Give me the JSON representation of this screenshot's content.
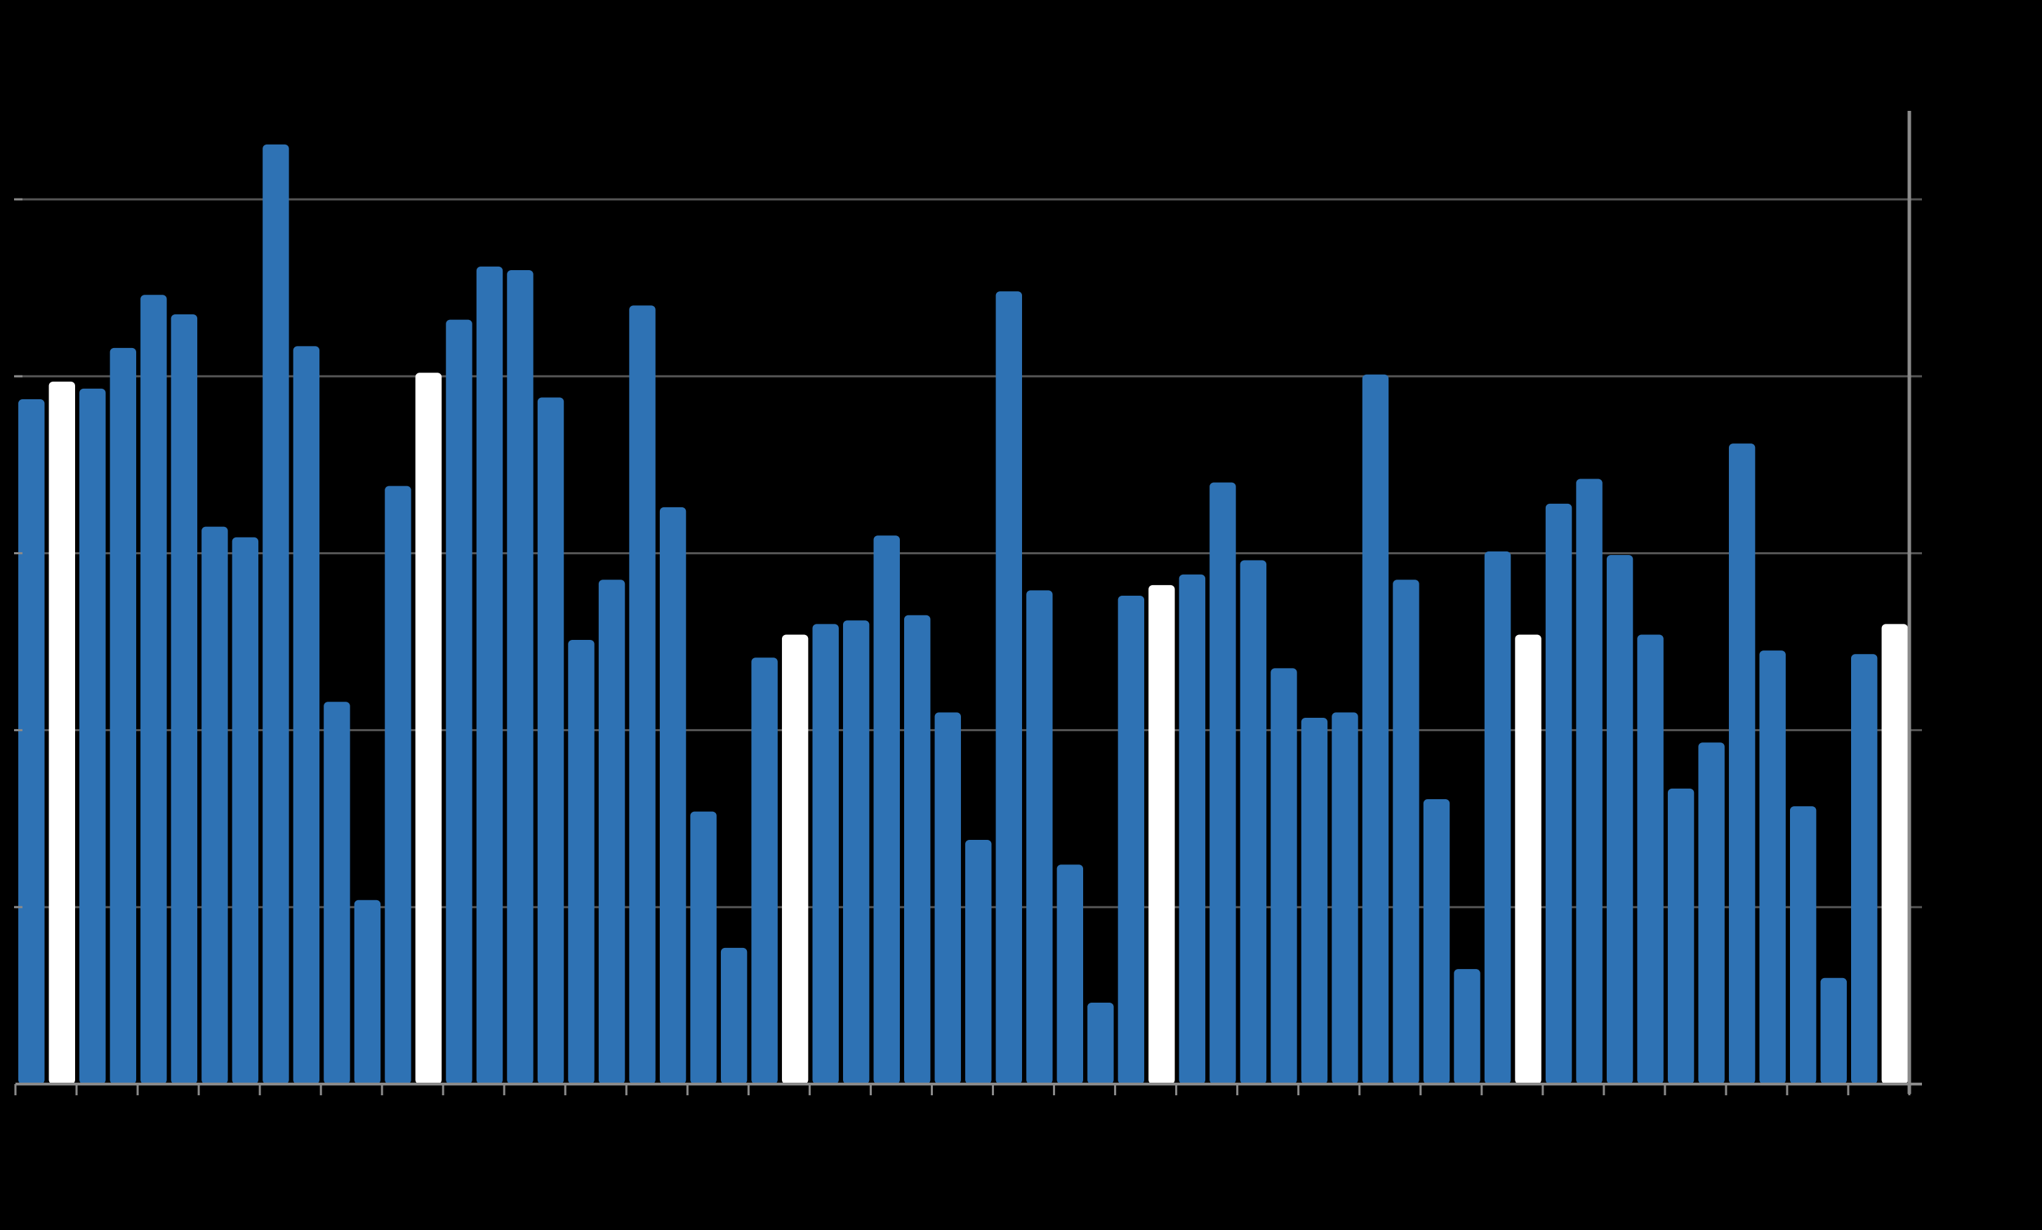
{
  "chart_data": {
    "type": "bar",
    "title": "",
    "xlabel": "",
    "ylabel": "",
    "ylim": [
      0,
      5.5
    ],
    "grid": true,
    "y_gridlines": [
      1,
      2,
      3,
      4,
      5
    ],
    "values": [
      3.87,
      3.97,
      3.93,
      4.16,
      4.46,
      4.35,
      3.15,
      3.09,
      5.31,
      4.17,
      2.16,
      1.04,
      3.38,
      4.02,
      4.32,
      4.62,
      4.6,
      3.88,
      2.51,
      2.85,
      4.4,
      3.26,
      1.54,
      0.77,
      2.41,
      2.54,
      2.6,
      2.62,
      3.1,
      2.65,
      2.1,
      1.38,
      4.48,
      2.79,
      1.24,
      0.46,
      2.76,
      2.82,
      2.88,
      3.4,
      2.96,
      2.35,
      2.07,
      2.1,
      4.01,
      2.85,
      1.61,
      0.65,
      3.01,
      2.54,
      3.28,
      3.42,
      2.99,
      2.54,
      1.67,
      1.93,
      3.62,
      2.45,
      1.57,
      0.6,
      2.43,
      2.6
    ],
    "highlighted_indices": [
      1,
      13,
      25,
      37,
      49,
      61
    ],
    "colors": {
      "bar": "#2e72b4",
      "highlight": "#ffffff",
      "background": "#000000",
      "grid": "#555555",
      "axis": "#8a8a8a"
    }
  }
}
